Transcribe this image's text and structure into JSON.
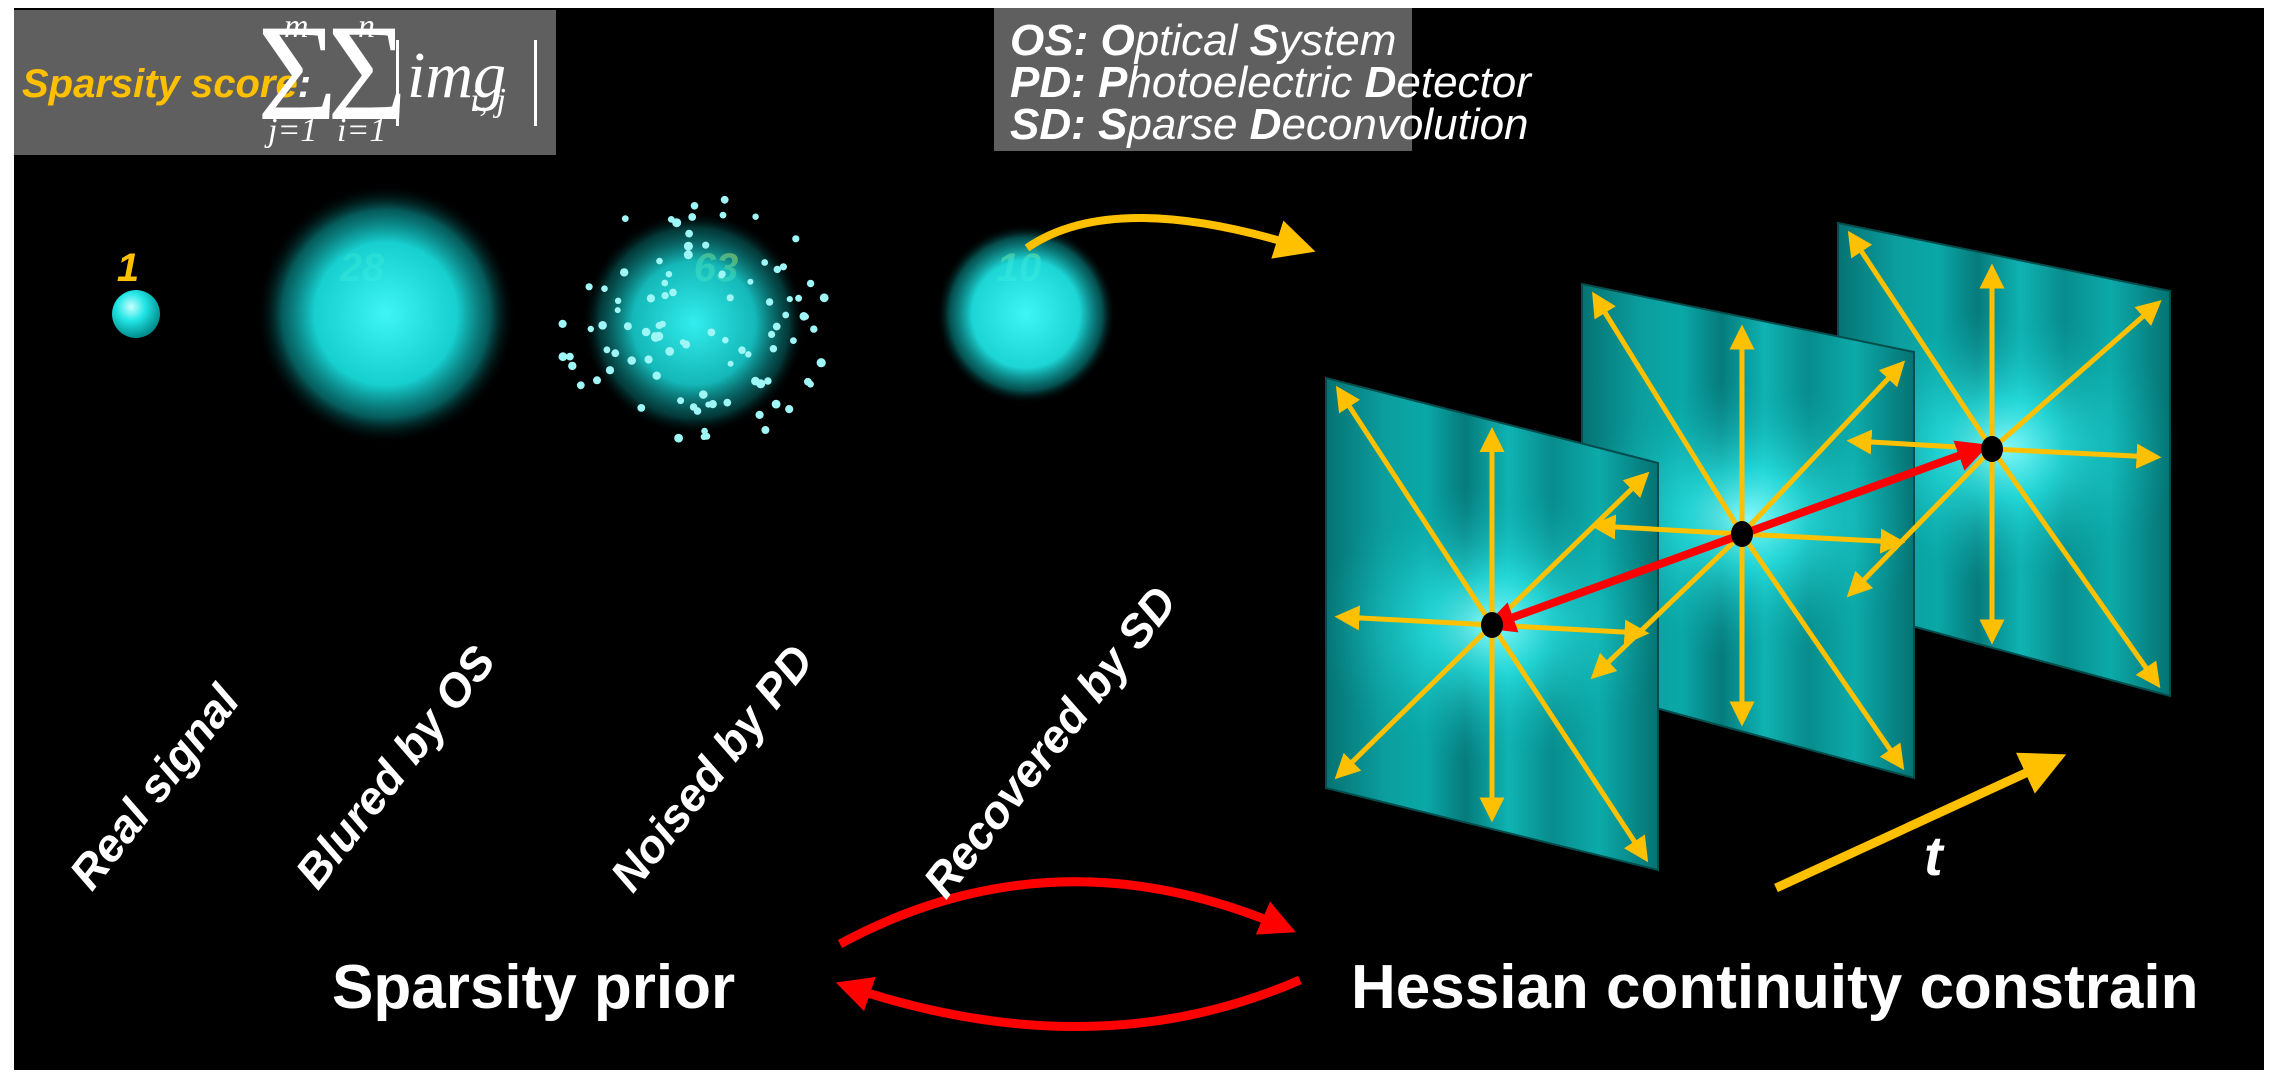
{
  "formula_box": {
    "label": "Sparsity score",
    "colon": ":",
    "sum_outer_upper": "m",
    "sum_outer_lower": "j=1",
    "sum_inner_upper": "n",
    "sum_inner_lower": "i=1",
    "term": "img",
    "subscript": "i, j"
  },
  "legend": [
    {
      "abbr": "OS",
      "w1_cap": "O",
      "w1_rest": "ptical ",
      "w2_cap": "S",
      "w2_rest": "ystem"
    },
    {
      "abbr": "PD",
      "w1_cap": "P",
      "w1_rest": "hotoelectric ",
      "w2_cap": "D",
      "w2_rest": "etector"
    },
    {
      "abbr": "SD",
      "w1_cap": "S",
      "w1_rest": "parse ",
      "w2_cap": "D",
      "w2_rest": "econvolution"
    }
  ],
  "stages": [
    {
      "score": "1",
      "label": "Real signal"
    },
    {
      "score": "28",
      "label": "Blured by OS"
    },
    {
      "score": "63",
      "label": "Noised by PD"
    },
    {
      "score": "10",
      "label": "Recovered by SD"
    }
  ],
  "time_axis_label": "t",
  "bottom": {
    "left": "Sparsity prior",
    "right": "Hessian continuity constrain"
  },
  "colors": {
    "accent_yellow": "#ffc000",
    "cyan": "#00e5e5",
    "red_arrow": "#ff0000",
    "box_gray": "#5f5f5f",
    "frame_teal": "#0aa3a3"
  }
}
